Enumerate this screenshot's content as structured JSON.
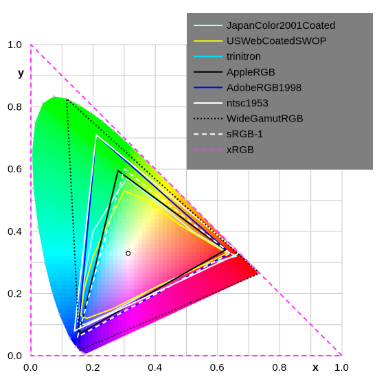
{
  "chart_data": {
    "type": "line",
    "xlabel": "x",
    "ylabel": "y",
    "xlim": [
      0.0,
      1.0
    ],
    "ylim": [
      0.0,
      1.0
    ],
    "x_ticks": [
      "0.0",
      "0.2",
      "0.4",
      "0.6",
      "0.8",
      "1.0"
    ],
    "y_ticks": [
      "0.0",
      "0.2",
      "0.4",
      "0.6",
      "0.8",
      "1.0"
    ],
    "grid": true,
    "legend_position": "top-right",
    "legend_background": "#7f7f7f",
    "white_point": {
      "x": 0.3127,
      "y": 0.329
    },
    "spectral_locus": [
      [
        0.1741,
        0.005
      ],
      [
        0.1738,
        0.0049
      ],
      [
        0.1733,
        0.0048
      ],
      [
        0.1726,
        0.0048
      ],
      [
        0.1714,
        0.0051
      ],
      [
        0.1689,
        0.0069
      ],
      [
        0.1644,
        0.0109
      ],
      [
        0.1566,
        0.0177
      ],
      [
        0.144,
        0.0297
      ],
      [
        0.1241,
        0.0578
      ],
      [
        0.0913,
        0.1327
      ],
      [
        0.0687,
        0.2007
      ],
      [
        0.0454,
        0.295
      ],
      [
        0.0235,
        0.4127
      ],
      [
        0.0082,
        0.5384
      ],
      [
        0.0039,
        0.6548
      ],
      [
        0.0139,
        0.7502
      ],
      [
        0.0389,
        0.812
      ],
      [
        0.0743,
        0.8338
      ],
      [
        0.1142,
        0.8262
      ],
      [
        0.1547,
        0.8059
      ],
      [
        0.1929,
        0.7816
      ],
      [
        0.2296,
        0.7543
      ],
      [
        0.2658,
        0.7243
      ],
      [
        0.3016,
        0.6923
      ],
      [
        0.3373,
        0.6589
      ],
      [
        0.3731,
        0.6245
      ],
      [
        0.4087,
        0.5896
      ],
      [
        0.4441,
        0.5547
      ],
      [
        0.4788,
        0.5202
      ],
      [
        0.5125,
        0.4866
      ],
      [
        0.5448,
        0.4544
      ],
      [
        0.5752,
        0.4242
      ],
      [
        0.6029,
        0.3965
      ],
      [
        0.627,
        0.3725
      ],
      [
        0.6482,
        0.3514
      ],
      [
        0.6658,
        0.334
      ],
      [
        0.6801,
        0.3197
      ],
      [
        0.6915,
        0.3083
      ],
      [
        0.7006,
        0.2993
      ],
      [
        0.7079,
        0.292
      ],
      [
        0.714,
        0.2859
      ],
      [
        0.719,
        0.2809
      ],
      [
        0.723,
        0.277
      ],
      [
        0.726,
        0.274
      ],
      [
        0.7283,
        0.2717
      ],
      [
        0.73,
        0.27
      ],
      [
        0.7311,
        0.2689
      ],
      [
        0.732,
        0.268
      ],
      [
        0.7327,
        0.2673
      ],
      [
        0.7334,
        0.2666
      ],
      [
        0.734,
        0.266
      ],
      [
        0.7344,
        0.2656
      ],
      [
        0.7346,
        0.2654
      ],
      [
        0.7347,
        0.2653
      ]
    ],
    "series": [
      {
        "name": "JapanColor2001Coated",
        "color": "#b3ffff",
        "dash": "solid",
        "points": [
          [
            0.66,
            0.32
          ],
          [
            0.62,
            0.34
          ],
          [
            0.52,
            0.4
          ],
          [
            0.4,
            0.5
          ],
          [
            0.31,
            0.57
          ],
          [
            0.28,
            0.53
          ],
          [
            0.2,
            0.4
          ],
          [
            0.17,
            0.24
          ],
          [
            0.15,
            0.11
          ],
          [
            0.17,
            0.1
          ],
          [
            0.26,
            0.14
          ],
          [
            0.4,
            0.22
          ],
          [
            0.55,
            0.29
          ]
        ]
      },
      {
        "name": "USWebCoatedSWOP",
        "color": "#ffff00",
        "dash": "solid",
        "points": [
          [
            0.63,
            0.33
          ],
          [
            0.58,
            0.36
          ],
          [
            0.48,
            0.42
          ],
          [
            0.37,
            0.5
          ],
          [
            0.3,
            0.53
          ],
          [
            0.25,
            0.43
          ],
          [
            0.2,
            0.32
          ],
          [
            0.17,
            0.21
          ],
          [
            0.16,
            0.13
          ],
          [
            0.18,
            0.12
          ],
          [
            0.26,
            0.15
          ],
          [
            0.38,
            0.21
          ],
          [
            0.53,
            0.28
          ]
        ]
      },
      {
        "name": "trinitron",
        "color": "#00e5ff",
        "dash": "solid",
        "points": [
          [
            0.625,
            0.34
          ],
          [
            0.28,
            0.595
          ],
          [
            0.155,
            0.07
          ]
        ]
      },
      {
        "name": "AppleRGB",
        "color": "#000000",
        "dash": "solid",
        "points": [
          [
            0.625,
            0.34
          ],
          [
            0.28,
            0.595
          ],
          [
            0.155,
            0.07
          ]
        ]
      },
      {
        "name": "AdobeRGB1998",
        "color": "#0000ff",
        "dash": "solid",
        "points": [
          [
            0.64,
            0.33
          ],
          [
            0.21,
            0.71
          ],
          [
            0.15,
            0.06
          ]
        ]
      },
      {
        "name": "ntsc1953",
        "color": "#ffffff",
        "dash": "solid",
        "points": [
          [
            0.67,
            0.33
          ],
          [
            0.21,
            0.71
          ],
          [
            0.14,
            0.08
          ]
        ]
      },
      {
        "name": "WideGamutRGB",
        "color": "#000000",
        "dash": "dotted",
        "points": [
          [
            0.735,
            0.265
          ],
          [
            0.115,
            0.826
          ],
          [
            0.157,
            0.018
          ]
        ]
      },
      {
        "name": "sRGB-1",
        "color": "#ffffff",
        "dash": "dashed",
        "points": [
          [
            0.64,
            0.33
          ],
          [
            0.3,
            0.6
          ],
          [
            0.15,
            0.06
          ]
        ]
      },
      {
        "name": "xRGB",
        "color": "#ff33ff",
        "dash": "dashed",
        "points": [
          [
            1.0,
            0.0
          ],
          [
            0.0,
            1.0
          ],
          [
            0.0,
            0.0
          ]
        ]
      }
    ]
  }
}
